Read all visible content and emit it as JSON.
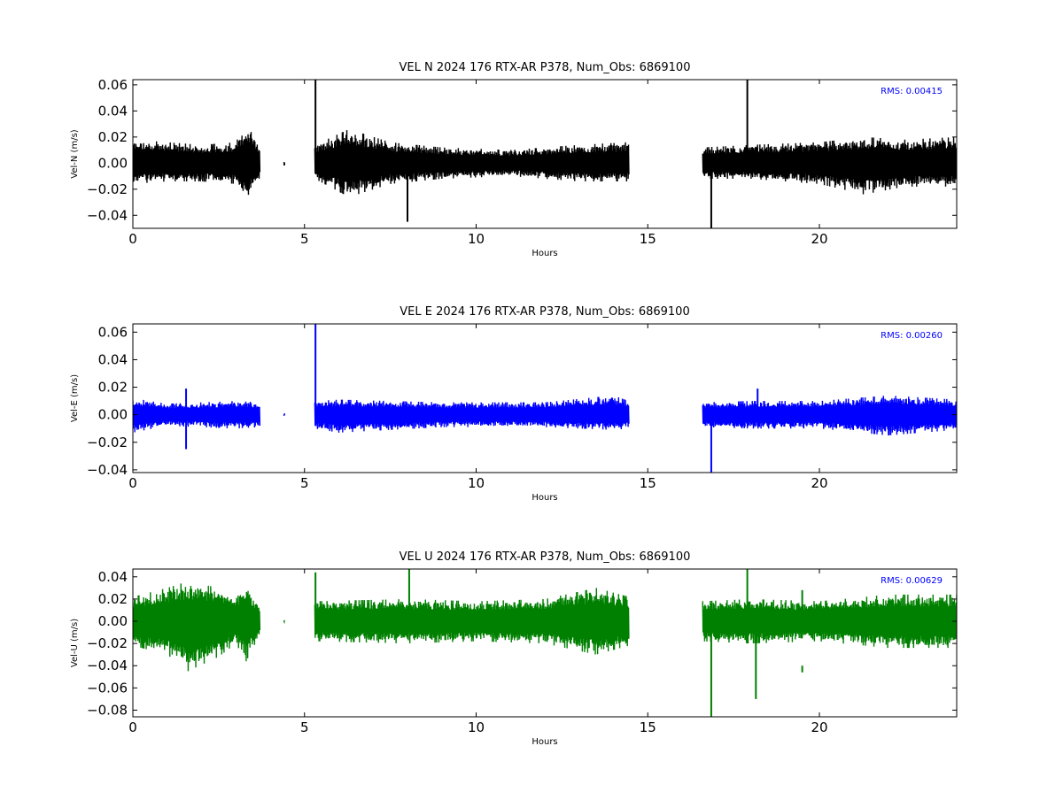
{
  "chart_data": [
    {
      "type": "line",
      "title": "VEL N 2024 176 RTX-AR  P378, Num_Obs: 6869100",
      "xlabel": "Hours",
      "ylabel": "Vel-N (m/s)",
      "xlim": [
        0,
        24
      ],
      "ylim": [
        -0.05,
        0.064
      ],
      "xticks": [
        0,
        5,
        10,
        15,
        20
      ],
      "xtick_labels": [
        "0",
        "5",
        "10",
        "15",
        "20"
      ],
      "yticks": [
        -0.04,
        -0.02,
        0.0,
        0.02,
        0.04,
        0.06
      ],
      "ytick_labels": [
        "−0.04",
        "−0.02",
        "0.00",
        "0.02",
        "0.04",
        "0.06"
      ],
      "color": "#000000",
      "rms_label": "RMS:  0.00415",
      "rms_color": "#0000ff",
      "grid": false,
      "series": [
        {
          "segments": [
            {
              "x": [
                0.0,
                3.7
              ],
              "y": [
                -0.014,
                0.014
              ]
            },
            {
              "x": [
                4.4,
                4.42
              ],
              "y": [
                -0.002,
                0.001
              ]
            },
            {
              "x": [
                5.3,
                14.45
              ],
              "y": [
                -0.013,
                0.013
              ]
            },
            {
              "x": [
                16.6,
                24.0
              ],
              "y": [
                -0.013,
                0.013
              ]
            }
          ],
          "envelope": [
            {
              "x": 0.0,
              "hi": 0.018,
              "lo": -0.016
            },
            {
              "x": 1.0,
              "hi": 0.016,
              "lo": -0.014
            },
            {
              "x": 2.0,
              "hi": 0.014,
              "lo": -0.014
            },
            {
              "x": 3.0,
              "hi": 0.016,
              "lo": -0.016
            },
            {
              "x": 3.3,
              "hi": 0.03,
              "lo": -0.027
            },
            {
              "x": 3.7,
              "hi": 0.013,
              "lo": -0.011
            },
            {
              "x": 5.3,
              "hi": 0.014,
              "lo": -0.012
            },
            {
              "x": 6.3,
              "hi": 0.026,
              "lo": -0.026
            },
            {
              "x": 7.5,
              "hi": 0.016,
              "lo": -0.016
            },
            {
              "x": 9.0,
              "hi": 0.012,
              "lo": -0.012
            },
            {
              "x": 11.0,
              "hi": 0.01,
              "lo": -0.01
            },
            {
              "x": 13.0,
              "hi": 0.014,
              "lo": -0.014
            },
            {
              "x": 14.45,
              "hi": 0.016,
              "lo": -0.014
            },
            {
              "x": 16.6,
              "hi": 0.012,
              "lo": -0.012
            },
            {
              "x": 18.0,
              "hi": 0.014,
              "lo": -0.012
            },
            {
              "x": 20.0,
              "hi": 0.016,
              "lo": -0.016
            },
            {
              "x": 21.3,
              "hi": 0.02,
              "lo": -0.024
            },
            {
              "x": 22.5,
              "hi": 0.018,
              "lo": -0.018
            },
            {
              "x": 24.0,
              "hi": 0.02,
              "lo": -0.018
            }
          ],
          "spikes": [
            {
              "x": 5.32,
              "y1": 0.0,
              "y2": 0.064
            },
            {
              "x": 8.0,
              "y1": 0.0,
              "y2": -0.045
            },
            {
              "x": 16.85,
              "y1": 0.0,
              "y2": -0.05
            },
            {
              "x": 17.9,
              "y1": 0.0,
              "y2": 0.064
            }
          ]
        }
      ]
    },
    {
      "type": "line",
      "title": "VEL E 2024 176 RTX-AR  P378, Num_Obs: 6869100",
      "xlabel": "Hours",
      "ylabel": "Vel-E (m/s)",
      "xlim": [
        0,
        24
      ],
      "ylim": [
        -0.042,
        0.066
      ],
      "xticks": [
        0,
        5,
        10,
        15,
        20
      ],
      "xtick_labels": [
        "0",
        "5",
        "10",
        "15",
        "20"
      ],
      "yticks": [
        -0.04,
        -0.02,
        0.0,
        0.02,
        0.04,
        0.06
      ],
      "ytick_labels": [
        "−0.04",
        "−0.02",
        "0.00",
        "0.02",
        "0.04",
        "0.06"
      ],
      "color": "#0000ff",
      "rms_label": "RMS:  0.00260",
      "rms_color": "#0000ff",
      "grid": false,
      "series": [
        {
          "segments": [
            {
              "x": [
                0.0,
                3.7
              ],
              "y": [
                -0.01,
                0.01
              ]
            },
            {
              "x": [
                4.4,
                4.42
              ],
              "y": [
                -0.001,
                0.001
              ]
            },
            {
              "x": [
                5.3,
                14.45
              ],
              "y": [
                -0.01,
                0.01
              ]
            },
            {
              "x": [
                16.6,
                24.0
              ],
              "y": [
                -0.01,
                0.01
              ]
            }
          ],
          "envelope": [
            {
              "x": 0.0,
              "hi": 0.012,
              "lo": -0.013
            },
            {
              "x": 1.0,
              "hi": 0.008,
              "lo": -0.008
            },
            {
              "x": 3.0,
              "hi": 0.01,
              "lo": -0.01
            },
            {
              "x": 3.7,
              "hi": 0.009,
              "lo": -0.009
            },
            {
              "x": 5.3,
              "hi": 0.01,
              "lo": -0.01
            },
            {
              "x": 6.0,
              "hi": 0.011,
              "lo": -0.013
            },
            {
              "x": 9.0,
              "hi": 0.009,
              "lo": -0.009
            },
            {
              "x": 12.0,
              "hi": 0.009,
              "lo": -0.009
            },
            {
              "x": 14.0,
              "hi": 0.014,
              "lo": -0.011
            },
            {
              "x": 14.45,
              "hi": 0.01,
              "lo": -0.01
            },
            {
              "x": 16.6,
              "hi": 0.009,
              "lo": -0.009
            },
            {
              "x": 18.0,
              "hi": 0.01,
              "lo": -0.01
            },
            {
              "x": 20.0,
              "hi": 0.01,
              "lo": -0.01
            },
            {
              "x": 22.0,
              "hi": 0.014,
              "lo": -0.015
            },
            {
              "x": 24.0,
              "hi": 0.011,
              "lo": -0.011
            }
          ],
          "spikes": [
            {
              "x": 1.55,
              "y1": 0.0,
              "y2": 0.019
            },
            {
              "x": 1.55,
              "y1": 0.0,
              "y2": -0.025
            },
            {
              "x": 5.32,
              "y1": 0.0,
              "y2": 0.066
            },
            {
              "x": 16.85,
              "y1": 0.0,
              "y2": -0.042
            },
            {
              "x": 18.2,
              "y1": 0.0,
              "y2": 0.019
            }
          ]
        }
      ]
    },
    {
      "type": "line",
      "title": "VEL U 2024 176 RTX-AR  P378, Num_Obs: 6869100",
      "xlabel": "Hours",
      "ylabel": "Vel-U (m/s)",
      "xlim": [
        0,
        24
      ],
      "ylim": [
        -0.086,
        0.047
      ],
      "xticks": [
        0,
        5,
        10,
        15,
        20
      ],
      "xtick_labels": [
        "0",
        "5",
        "10",
        "15",
        "20"
      ],
      "yticks": [
        -0.08,
        -0.06,
        -0.04,
        -0.02,
        0.0,
        0.02,
        0.04
      ],
      "ytick_labels": [
        "−0.08",
        "−0.06",
        "−0.04",
        "−0.02",
        "0.00",
        "0.02",
        "0.04"
      ],
      "color": "#008000",
      "rms_label": "RMS:  0.00629",
      "rms_color": "#0000ff",
      "grid": false,
      "series": [
        {
          "segments": [
            {
              "x": [
                0.0,
                3.7
              ],
              "y": [
                -0.02,
                0.02
              ]
            },
            {
              "x": [
                4.4,
                4.42
              ],
              "y": [
                -0.001,
                0.001
              ]
            },
            {
              "x": [
                5.3,
                14.45
              ],
              "y": [
                -0.018,
                0.018
              ]
            },
            {
              "x": [
                16.6,
                24.0
              ],
              "y": [
                -0.018,
                0.018
              ]
            }
          ],
          "envelope": [
            {
              "x": 0.0,
              "hi": 0.022,
              "lo": -0.022
            },
            {
              "x": 1.0,
              "hi": 0.03,
              "lo": -0.03
            },
            {
              "x": 1.6,
              "hi": 0.036,
              "lo": -0.045
            },
            {
              "x": 2.5,
              "hi": 0.03,
              "lo": -0.032
            },
            {
              "x": 3.0,
              "hi": 0.02,
              "lo": -0.02
            },
            {
              "x": 3.3,
              "hi": 0.034,
              "lo": -0.036
            },
            {
              "x": 3.7,
              "hi": 0.012,
              "lo": -0.012
            },
            {
              "x": 5.3,
              "hi": 0.018,
              "lo": -0.018
            },
            {
              "x": 8.0,
              "hi": 0.02,
              "lo": -0.02
            },
            {
              "x": 10.0,
              "hi": 0.018,
              "lo": -0.018
            },
            {
              "x": 12.0,
              "hi": 0.02,
              "lo": -0.02
            },
            {
              "x": 13.5,
              "hi": 0.03,
              "lo": -0.03
            },
            {
              "x": 14.45,
              "hi": 0.022,
              "lo": -0.022
            },
            {
              "x": 16.6,
              "hi": 0.018,
              "lo": -0.018
            },
            {
              "x": 18.0,
              "hi": 0.02,
              "lo": -0.02
            },
            {
              "x": 20.0,
              "hi": 0.018,
              "lo": -0.018
            },
            {
              "x": 22.0,
              "hi": 0.024,
              "lo": -0.024
            },
            {
              "x": 24.0,
              "hi": 0.024,
              "lo": -0.024
            }
          ],
          "spikes": [
            {
              "x": 5.32,
              "y1": 0.0,
              "y2": 0.044
            },
            {
              "x": 8.05,
              "y1": 0.0,
              "y2": 0.047
            },
            {
              "x": 16.85,
              "y1": 0.0,
              "y2": -0.086
            },
            {
              "x": 17.9,
              "y1": 0.0,
              "y2": 0.047
            },
            {
              "x": 18.15,
              "y1": 0.0,
              "y2": -0.07
            },
            {
              "x": 19.5,
              "y1": -0.04,
              "y2": -0.046
            },
            {
              "x": 19.5,
              "y1": 0.0,
              "y2": 0.028
            }
          ]
        }
      ]
    }
  ]
}
